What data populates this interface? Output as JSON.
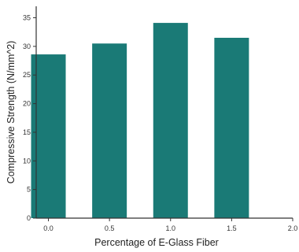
{
  "chart_data": {
    "type": "bar",
    "title": "",
    "xlabel": "Percentage of E-Glass Fiber",
    "ylabel": "Compressive Strength (N/mm^2)",
    "categories": [
      "0.0",
      "0.5",
      "1.0",
      "1.5"
    ],
    "values": [
      28.6,
      30.5,
      34.1,
      31.5
    ],
    "x_ticks": [
      "0.0",
      "0.5",
      "1.0",
      "1.5",
      "2.0"
    ],
    "y_ticks": [
      "0",
      "5",
      "10",
      "15",
      "20",
      "25",
      "30",
      "35"
    ],
    "ylim": [
      0,
      37
    ],
    "grid": false,
    "legend": "none",
    "bar_color": "#1a7a76"
  }
}
